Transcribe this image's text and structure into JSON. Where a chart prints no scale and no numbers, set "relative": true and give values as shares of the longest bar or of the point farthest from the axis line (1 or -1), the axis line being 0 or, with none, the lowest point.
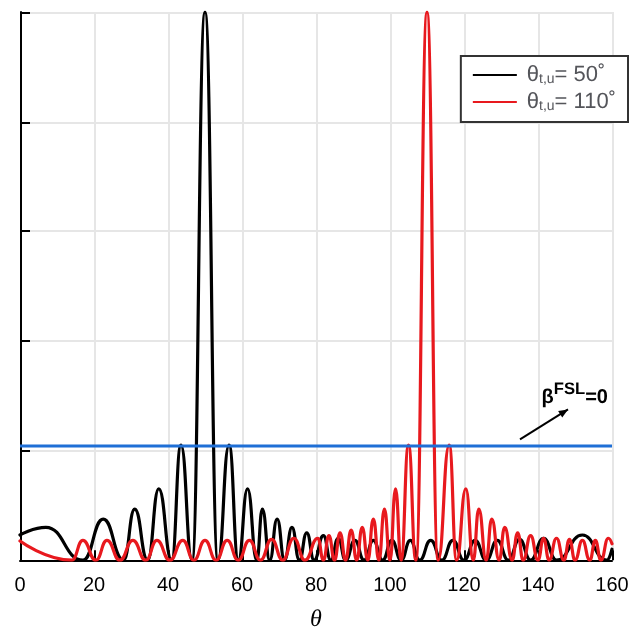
{
  "chart_data": {
    "type": "line",
    "relative": true,
    "xlabel": "θ",
    "xlim": [
      0,
      160
    ],
    "xticks": [
      0,
      20,
      40,
      60,
      80,
      100,
      120,
      140,
      160
    ],
    "grid": true,
    "legend": "top right",
    "marker": "none",
    "line_style": "solid",
    "series": [
      {
        "name": "θ$_{t,u}$= 50˚",
        "color": "#000000",
        "x": [
          0,
          7,
          17,
          22.5,
          28,
          31,
          34.5,
          37.5,
          41,
          43.5,
          46.5,
          50,
          53.5,
          56.5,
          59,
          61.5,
          64,
          65.5,
          67.5,
          69.5,
          71.5,
          73.5,
          75.5,
          77.5,
          79.5,
          82,
          84,
          86,
          88,
          90.5,
          93,
          95.5,
          98,
          100.5,
          103,
          105.5,
          108,
          111,
          114,
          117,
          120,
          123,
          126,
          129,
          132,
          135,
          138,
          141.5,
          145,
          152,
          158.6,
          160
        ],
        "values": [
          0.046,
          0.06,
          0,
          0.075,
          0,
          0.093,
          0,
          0.13,
          0,
          0.21,
          0,
          1,
          0,
          0.21,
          0,
          0.13,
          0,
          0.093,
          0,
          0.075,
          0,
          0.06,
          0,
          0.05,
          0,
          0.045,
          0,
          0.04,
          0,
          0.036,
          0,
          0.036,
          0,
          0.036,
          0,
          0.036,
          0,
          0.036,
          0,
          0.036,
          0,
          0.036,
          0,
          0.036,
          0,
          0.038,
          0,
          0.04,
          0,
          0.046,
          0,
          0.02
        ]
      },
      {
        "name": "θ$_{t,u}$= 110˚",
        "color": "#e8191e",
        "x": [
          0,
          14,
          17,
          20.5,
          23.5,
          27,
          30.5,
          34,
          37,
          40.5,
          44,
          47,
          50,
          53,
          56,
          59,
          62,
          65,
          68,
          71,
          74,
          77,
          80.5,
          82,
          83.5,
          85,
          86.5,
          88,
          89.5,
          91,
          92.5,
          94,
          95.5,
          97,
          98.5,
          100,
          101.5,
          103,
          105,
          107,
          110,
          113,
          116,
          118,
          120.5,
          122.5,
          124,
          126,
          127.5,
          129.5,
          131,
          133,
          134.5,
          136,
          138,
          140,
          141.5,
          143,
          145,
          147,
          148.5,
          150,
          152,
          154,
          155.5,
          157,
          159,
          160
        ],
        "values": [
          0.035,
          0,
          0.036,
          0,
          0.036,
          0,
          0.036,
          0,
          0.036,
          0,
          0.036,
          0,
          0.036,
          0,
          0.036,
          0,
          0.036,
          0,
          0.038,
          0,
          0.04,
          0,
          0.04,
          0,
          0.045,
          0,
          0.05,
          0,
          0.055,
          0,
          0.06,
          0,
          0.075,
          0,
          0.093,
          0,
          0.13,
          0,
          0.21,
          0,
          1,
          0,
          0.21,
          0,
          0.13,
          0,
          0.093,
          0,
          0.075,
          0,
          0.06,
          0,
          0.05,
          0,
          0.045,
          0,
          0.04,
          0,
          0.04,
          0,
          0.038,
          0,
          0.036,
          0,
          0.036,
          0,
          0.04,
          0.03
        ]
      }
    ],
    "ref_lines": [
      {
        "axis": "y",
        "value": 0.213,
        "label": "β$^{FSL}$=0",
        "color": "#1f6fd6"
      }
    ]
  }
}
